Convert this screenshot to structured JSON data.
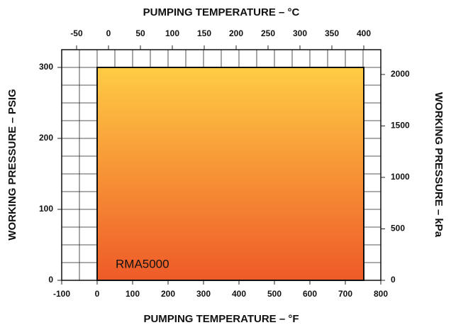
{
  "chart_data": {
    "type": "area",
    "x_label": "PUMPING TEMPERATURE – °F",
    "x2_label": "PUMPING TEMPERATURE – °C",
    "y_label": "WORKING PRESSURE – PSIG",
    "y2_label": "WORKING PRESSURE – kPa",
    "xlim": [
      -100,
      800
    ],
    "xticks": [
      -100,
      0,
      100,
      200,
      300,
      400,
      500,
      600,
      700,
      800
    ],
    "x2lim": [
      -73.33,
      426.67
    ],
    "x2ticks": [
      -50,
      0,
      50,
      100,
      150,
      200,
      250,
      300,
      350,
      400
    ],
    "ylim": [
      0,
      325
    ],
    "yticks": [
      0,
      100,
      200,
      300
    ],
    "y2lim": [
      0,
      2240.8
    ],
    "y2ticks": [
      0,
      500,
      1000,
      1500,
      2000
    ],
    "grid": true,
    "series": [
      {
        "name": "RMA5000",
        "color_top": "#ffcc44",
        "color_bottom": "#ee5a28",
        "x": [
          0,
          752
        ],
        "values": [
          300,
          300
        ]
      }
    ]
  }
}
